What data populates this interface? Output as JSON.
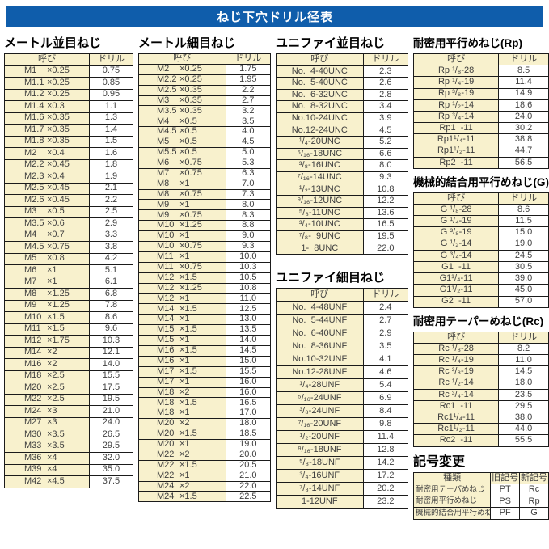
{
  "title": "ねじ下穴ドリル径表",
  "tables": {
    "metric_coarse": {
      "heading": "メートル並目ねじ",
      "col_headers": [
        "呼び",
        "ドリル"
      ],
      "rows": [
        [
          "M1",
          "×0.25",
          "0.75"
        ],
        [
          "M1.1",
          "×0.25",
          "0.85"
        ],
        [
          "M1.2",
          "×0.25",
          "0.95"
        ],
        [
          "M1.4",
          "×0.3",
          "1.1"
        ],
        [
          "M1.6",
          "×0.35",
          "1.3"
        ],
        [
          "M1.7",
          "×0.35",
          "1.4"
        ],
        [
          "M1.8",
          "×0.35",
          "1.5"
        ],
        [
          "M2",
          "×0.4",
          "1.6"
        ],
        [
          "M2.2",
          "×0.45",
          "1.8"
        ],
        [
          "M2.3",
          "×0.4",
          "1.9"
        ],
        [
          "M2.5",
          "×0.45",
          "2.1"
        ],
        [
          "M2.6",
          "×0.45",
          "2.2"
        ],
        [
          "M3",
          "×0.5",
          "2.5"
        ],
        [
          "M3.5",
          "×0.6",
          "2.9"
        ],
        [
          "M4",
          "×0.7",
          "3.3"
        ],
        [
          "M4.5",
          "×0.75",
          "3.8"
        ],
        [
          "M5",
          "×0.8",
          "4.2"
        ],
        [
          "M6",
          "×1",
          "5.1"
        ],
        [
          "M7",
          "×1",
          "6.1"
        ],
        [
          "M8",
          "×1.25",
          "6.8"
        ],
        [
          "M9",
          "×1.25",
          "7.8"
        ],
        [
          "M10",
          "×1.5",
          "8.6"
        ],
        [
          "M11",
          "×1.5",
          "9.6"
        ],
        [
          "M12",
          "×1.75",
          "10.3"
        ],
        [
          "M14",
          "×2",
          "12.1"
        ],
        [
          "M16",
          "×2",
          "14.0"
        ],
        [
          "M18",
          "×2.5",
          "15.5"
        ],
        [
          "M20",
          "×2.5",
          "17.5"
        ],
        [
          "M22",
          "×2.5",
          "19.5"
        ],
        [
          "M24",
          "×3",
          "21.0"
        ],
        [
          "M27",
          "×3",
          "24.0"
        ],
        [
          "M30",
          "×3.5",
          "26.5"
        ],
        [
          "M33",
          "×3.5",
          "29.5"
        ],
        [
          "M36",
          "×4",
          "32.0"
        ],
        [
          "M39",
          "×4",
          "35.0"
        ],
        [
          "M42",
          "×4.5",
          "37.5"
        ]
      ]
    },
    "metric_fine": {
      "heading": "メートル細目ねじ",
      "col_headers": [
        "呼び",
        "ドリル"
      ],
      "rows": [
        [
          "M2",
          "×0.25",
          "1.75"
        ],
        [
          "M2.2",
          "×0.25",
          "1.95"
        ],
        [
          "M2.5",
          "×0.35",
          "2.2"
        ],
        [
          "M3",
          "×0.35",
          "2.7"
        ],
        [
          "M3.5",
          "×0.35",
          "3.2"
        ],
        [
          "M4",
          "×0.5",
          "3.5"
        ],
        [
          "M4.5",
          "×0.5",
          "4.0"
        ],
        [
          "M5",
          "×0.5",
          "4.5"
        ],
        [
          "M5.5",
          "×0.5",
          "5.0"
        ],
        [
          "M6",
          "×0.75",
          "5.3"
        ],
        [
          "M7",
          "×0.75",
          "6.3"
        ],
        [
          "M8",
          "×1",
          "7.0"
        ],
        [
          "M8",
          "×0.75",
          "7.3"
        ],
        [
          "M9",
          "×1",
          "8.0"
        ],
        [
          "M9",
          "×0.75",
          "8.3"
        ],
        [
          "M10",
          "×1.25",
          "8.8"
        ],
        [
          "M10",
          "×1",
          "9.0"
        ],
        [
          "M10",
          "×0.75",
          "9.3"
        ],
        [
          "M11",
          "×1",
          "10.0"
        ],
        [
          "M11",
          "×0.75",
          "10.3"
        ],
        [
          "M12",
          "×1.5",
          "10.5"
        ],
        [
          "M12",
          "×1.25",
          "10.8"
        ],
        [
          "M12",
          "×1",
          "11.0"
        ],
        [
          "M14",
          "×1.5",
          "12.5"
        ],
        [
          "M14",
          "×1",
          "13.0"
        ],
        [
          "M15",
          "×1.5",
          "13.5"
        ],
        [
          "M15",
          "×1",
          "14.0"
        ],
        [
          "M16",
          "×1.5",
          "14.5"
        ],
        [
          "M16",
          "×1",
          "15.0"
        ],
        [
          "M17",
          "×1.5",
          "15.5"
        ],
        [
          "M17",
          "×1",
          "16.0"
        ],
        [
          "M18",
          "×2",
          "16.0"
        ],
        [
          "M18",
          "×1.5",
          "16.5"
        ],
        [
          "M18",
          "×1",
          "17.0"
        ],
        [
          "M20",
          "×2",
          "18.0"
        ],
        [
          "M20",
          "×1.5",
          "18.5"
        ],
        [
          "M20",
          "×1",
          "19.0"
        ],
        [
          "M22",
          "×2",
          "20.0"
        ],
        [
          "M22",
          "×1.5",
          "20.5"
        ],
        [
          "M22",
          "×1",
          "21.0"
        ],
        [
          "M24",
          "×2",
          "22.0"
        ],
        [
          "M24",
          "×1.5",
          "22.5"
        ]
      ]
    },
    "unified_coarse": {
      "heading": "ユニファイ並目ねじ",
      "col_headers": [
        "呼び",
        "ドリル"
      ],
      "rows": [
        [
          "No.  4-40UNC",
          "2.3"
        ],
        [
          "No.  5-40UNC",
          "2.6"
        ],
        [
          "No.  6-32UNC",
          "2.8"
        ],
        [
          "No.  8-32UNC",
          "3.4"
        ],
        [
          "No.10-24UNC",
          "3.9"
        ],
        [
          "No.12-24UNC",
          "4.5"
        ],
        [
          "¹/₄-20UNC",
          "5.2"
        ],
        [
          "⁵/₁₆-18UNC",
          "6.6"
        ],
        [
          "³/₈-16UNC",
          "8.0"
        ],
        [
          "⁷/₁₆-14UNC",
          "9.3"
        ],
        [
          "¹/₂-13UNC",
          "10.8"
        ],
        [
          "⁹/₁₆-12UNC",
          "12.2"
        ],
        [
          "⁵/₈-11UNC",
          "13.6"
        ],
        [
          "³/₄-10UNC",
          "16.5"
        ],
        [
          "⁷/₈-  9UNC",
          "19.5"
        ],
        [
          "1-  8UNC",
          "22.0"
        ]
      ]
    },
    "unified_fine": {
      "heading": "ユニファイ細目ねじ",
      "col_headers": [
        "呼び",
        "ドリル"
      ],
      "rows": [
        [
          "No.  4-48UNF",
          "2.4"
        ],
        [
          "No.  5-44UNF",
          "2.7"
        ],
        [
          "No.  6-40UNF",
          "2.9"
        ],
        [
          "No.  8-36UNF",
          "3.5"
        ],
        [
          "No.10-32UNF",
          "4.1"
        ],
        [
          "No.12-28UNF",
          "4.6"
        ],
        [
          "¹/₄-28UNF",
          "5.4"
        ],
        [
          "⁵/₁₆-24UNF",
          "6.9"
        ],
        [
          "³/₈-24UNF",
          "8.4"
        ],
        [
          "⁷/₁₆-20UNF",
          "9.8"
        ],
        [
          "¹/₂-20UNF",
          "11.4"
        ],
        [
          "⁹/₁₆-18UNF",
          "12.8"
        ],
        [
          "⁵/₈-18UNF",
          "14.2"
        ],
        [
          "³/₄-16UNF",
          "17.2"
        ],
        [
          "⁷/₈-14UNF",
          "20.2"
        ],
        [
          "1-12UNF",
          "23.2"
        ]
      ]
    },
    "rp": {
      "heading": "耐密用平行めねじ(Rp)",
      "col_headers": [
        "呼び",
        "ドリル"
      ],
      "rows": [
        [
          "Rp ¹/₈-28",
          "8.5"
        ],
        [
          "Rp ¹/₄-19",
          "11.4"
        ],
        [
          "Rp ³/₈-19",
          "14.9"
        ],
        [
          "Rp ¹/₂-14",
          "18.6"
        ],
        [
          "Rp ³/₄-14",
          "24.0"
        ],
        [
          "Rp1  -11",
          "30.2"
        ],
        [
          "Rp1¹/₄-11",
          "38.8"
        ],
        [
          "Rp1¹/₂-11",
          "44.7"
        ],
        [
          "Rp2  -11",
          "56.5"
        ]
      ]
    },
    "g": {
      "heading": "機械的結合用平行めねじ(G)",
      "col_headers": [
        "呼び",
        "ドリル"
      ],
      "rows": [
        [
          "G ¹/₈-28",
          "8.6"
        ],
        [
          "G ¹/₄-19",
          "11.5"
        ],
        [
          "G ³/₈-19",
          "15.0"
        ],
        [
          "G ¹/₂-14",
          "19.0"
        ],
        [
          "G ³/₄-14",
          "24.5"
        ],
        [
          "G1  -11",
          "30.5"
        ],
        [
          "G1¹/₄-11",
          "39.0"
        ],
        [
          "G1¹/₂-11",
          "45.0"
        ],
        [
          "G2  -11",
          "57.0"
        ]
      ]
    },
    "rc": {
      "heading": "耐密用テーパーめねじ(Rc)",
      "col_headers": [
        "呼び",
        "ドリル"
      ],
      "rows": [
        [
          "Rc ¹/₈-28",
          "8.2"
        ],
        [
          "Rc ¹/₄-19",
          "11.0"
        ],
        [
          "Rc ³/₈-19",
          "14.5"
        ],
        [
          "Rc ¹/₂-14",
          "18.0"
        ],
        [
          "Rc ³/₄-14",
          "23.5"
        ],
        [
          "Rc1  -11",
          "29.5"
        ],
        [
          "Rc1¹/₄-11",
          "38.0"
        ],
        [
          "Rc1¹/₂-11",
          "44.0"
        ],
        [
          "Rc2  -11",
          "55.5"
        ]
      ]
    },
    "symbol_change": {
      "heading": "記号変更",
      "col_headers": [
        "種類",
        "旧記号",
        "新記号"
      ],
      "rows": [
        [
          "耐密用テーパめねじ",
          "PT",
          "Rc"
        ],
        [
          "耐密用平行めねじ",
          "PS",
          "Rp"
        ],
        [
          "機械的結合用平行めねじ",
          "PF",
          "G"
        ]
      ]
    }
  },
  "colors": {
    "title_bar": "#0f5dab",
    "cell_cream": "#f8f1cd",
    "border": "#1b1b1b",
    "text": "#3f3f3f"
  }
}
